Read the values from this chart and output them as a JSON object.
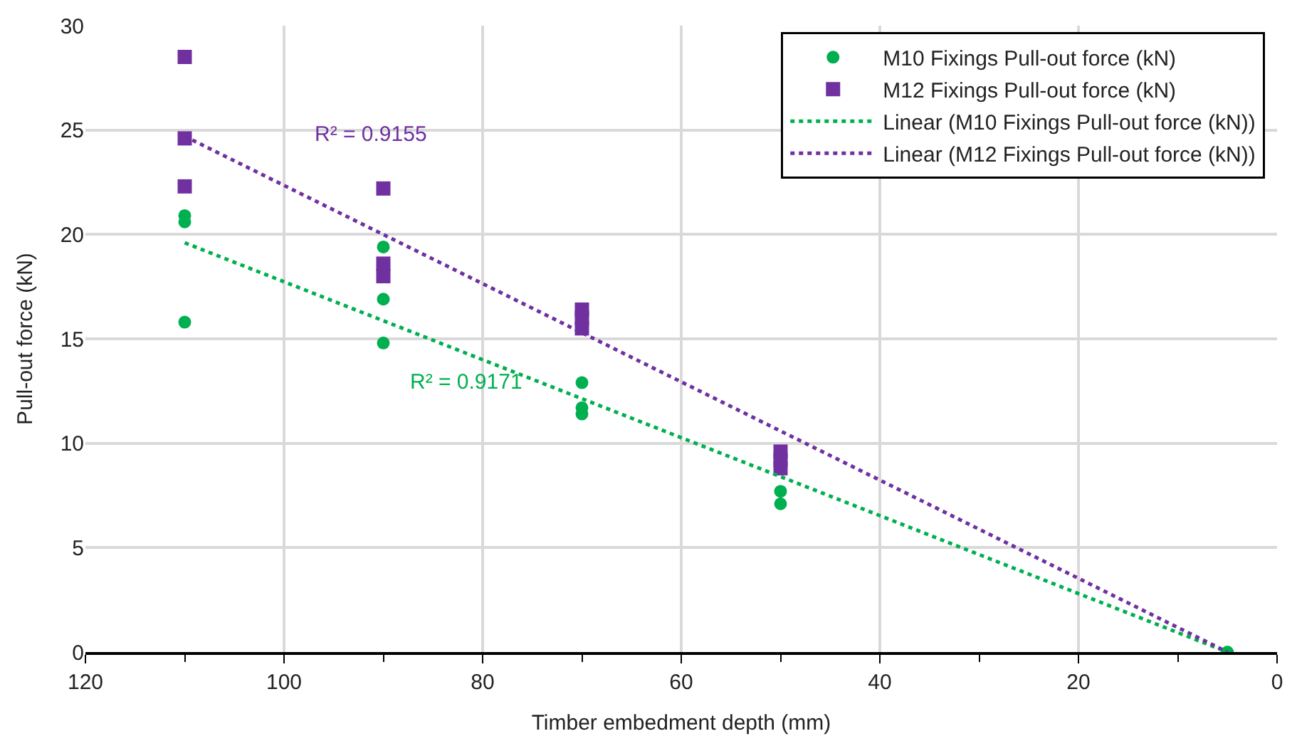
{
  "chart_data": {
    "type": "scatter",
    "xlabel": "Timber embedment depth (mm)",
    "ylabel": "Pull-out force (kN)",
    "xlim": [
      120,
      0
    ],
    "xticks": [
      120,
      {
        "value": 110,
        "label": null
      },
      100,
      {
        "value": 90,
        "label": null
      },
      80,
      {
        "value": 70,
        "label": null
      },
      60,
      {
        "value": 50,
        "label": null
      },
      40,
      {
        "value": 30,
        "label": null
      },
      20,
      {
        "value": 10,
        "label": null
      },
      0
    ],
    "ylim": [
      0,
      30
    ],
    "yticks": [
      0,
      5,
      10,
      15,
      20,
      25,
      30
    ],
    "grid": true,
    "legend": "top right",
    "series": [
      {
        "name": "M10 Fixings Pull-out force (kN)",
        "color": "#00b050",
        "marker": "circle",
        "x": [
          110,
          110,
          110,
          90,
          90,
          90,
          70,
          70,
          70,
          50,
          50,
          5
        ],
        "values": [
          20.9,
          20.6,
          15.8,
          19.4,
          16.9,
          14.8,
          12.9,
          11.7,
          11.4,
          7.7,
          7.1,
          0
        ]
      },
      {
        "name": "M12 Fixings Pull-out force (kN)",
        "color": "#7030a0",
        "marker": "square",
        "x": [
          110,
          110,
          110,
          90,
          90,
          90,
          70,
          70,
          70,
          50,
          50,
          50
        ],
        "values": [
          28.5,
          24.6,
          22.3,
          22.2,
          18.6,
          18.0,
          16.4,
          16.0,
          15.5,
          9.6,
          9.2,
          8.8
        ]
      },
      {
        "name": "Linear (M10 Fixings Pull-out force (kN))",
        "type": "line",
        "line_style": "dotted",
        "color": "#00b050",
        "x": [
          110,
          5
        ],
        "values": [
          19.6,
          0
        ]
      },
      {
        "name": "Linear (M12 Fixings Pull-out force (kN))",
        "type": "line",
        "line_style": "dotted",
        "color": "#7030a0",
        "x": [
          110,
          5
        ],
        "values": [
          24.7,
          0
        ]
      }
    ],
    "annotations": [
      "R² = 0.9155",
      "R² = 0.9171"
    ]
  }
}
